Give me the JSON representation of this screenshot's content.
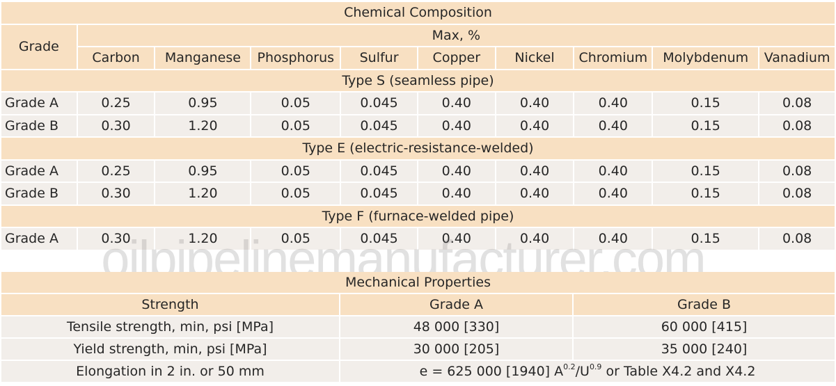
{
  "chemical": {
    "title": "Chemical Composition",
    "grade_header": "Grade",
    "max_header": "Max, %",
    "columns": [
      "Carbon",
      "Manganese",
      "Phosphorus",
      "Sulfur",
      "Copper",
      "Nickel",
      "Chromium",
      "Molybdenum",
      "Vanadium"
    ],
    "sections": [
      {
        "title": "Type S (seamless pipe)",
        "rows": [
          {
            "grade": "Grade A",
            "values": [
              "0.25",
              "0.95",
              "0.05",
              "0.045",
              "0.40",
              "0.40",
              "0.40",
              "0.15",
              "0.08"
            ]
          },
          {
            "grade": "Grade B",
            "values": [
              "0.30",
              "1.20",
              "0.05",
              "0.045",
              "0.40",
              "0.40",
              "0.40",
              "0.15",
              "0.08"
            ]
          }
        ]
      },
      {
        "title": "Type E (electric-resistance-welded)",
        "rows": [
          {
            "grade": "Grade A",
            "values": [
              "0.25",
              "0.95",
              "0.05",
              "0.045",
              "0.40",
              "0.40",
              "0.40",
              "0.15",
              "0.08"
            ]
          },
          {
            "grade": "Grade B",
            "values": [
              "0.30",
              "1.20",
              "0.05",
              "0.045",
              "0.40",
              "0.40",
              "0.40",
              "0.15",
              "0.08"
            ]
          }
        ]
      },
      {
        "title": "Type F (furnace-welded pipe)",
        "rows": [
          {
            "grade": "Grade A",
            "values": [
              "0.30",
              "1.20",
              "0.05",
              "0.045",
              "0.40",
              "0.40",
              "0.40",
              "0.15",
              "0.08"
            ]
          }
        ]
      }
    ]
  },
  "watermark": "oilpipelinemanufacturer.com",
  "mechanical": {
    "title": "Mechanical Properties",
    "headers": [
      "Strength",
      "Grade A",
      "Grade B"
    ],
    "rows": [
      {
        "label": "Tensile strength, min, psi [MPa]",
        "a": "48 000 [330]",
        "b": "60 000 [415]"
      },
      {
        "label": "Yield strength, min, psi [MPa]",
        "a": "30 000 [205]",
        "b": "35 000 [240]"
      }
    ],
    "elongation": {
      "label": "Elongation in 2 in. or 50 mm",
      "prefix": "e = 625 000 [1940] A",
      "sup1": "0.2",
      "mid": "/U",
      "sup2": "0.9",
      "suffix": " or Table X4.2 and X4.2"
    }
  },
  "colors": {
    "header_bg": "#f8e0c2",
    "cell_bg": "#f2eeea",
    "text": "#262626"
  }
}
